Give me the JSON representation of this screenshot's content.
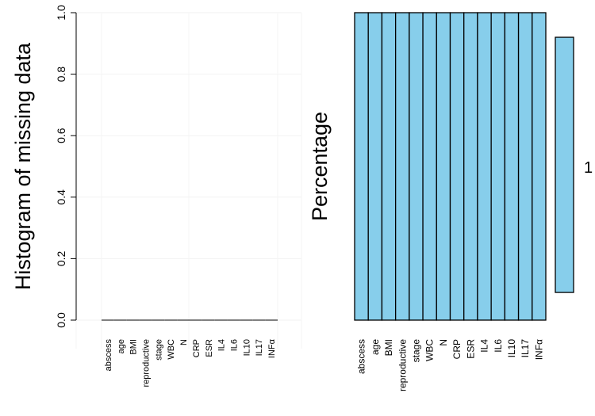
{
  "chart_data": [
    {
      "type": "bar",
      "ylabel": "Histogram of missing data",
      "xlabel": "",
      "ylim": [
        0,
        1
      ],
      "yticks": [
        "0.0",
        "0.2",
        "0.4",
        "0.6",
        "0.8",
        "1.0"
      ],
      "categories": [
        "abscess",
        "age",
        "BMI",
        "reproductive",
        "stage",
        "WBC",
        "N",
        "CRP",
        "ESR",
        "IL4",
        "IL6",
        "IL10",
        "IL17",
        "INFα"
      ],
      "values": [
        0,
        0,
        0,
        0,
        0,
        0,
        0,
        0,
        0,
        0,
        0,
        0,
        0,
        0
      ],
      "grid": true
    },
    {
      "type": "heatmap",
      "ylabel": "Percentage",
      "categories": [
        "abscess",
        "age",
        "BMI",
        "reproductive",
        "stage",
        "WBC",
        "N",
        "CRP",
        "ESR",
        "IL4",
        "IL6",
        "IL10",
        "IL17",
        "INFα"
      ],
      "patterns": [
        {
          "proportion": 1,
          "label": "1",
          "missing": [
            false,
            false,
            false,
            false,
            false,
            false,
            false,
            false,
            false,
            false,
            false,
            false,
            false,
            false
          ]
        }
      ],
      "colors": {
        "observed": "#87ceeb",
        "missing": "#ff0000"
      }
    }
  ]
}
